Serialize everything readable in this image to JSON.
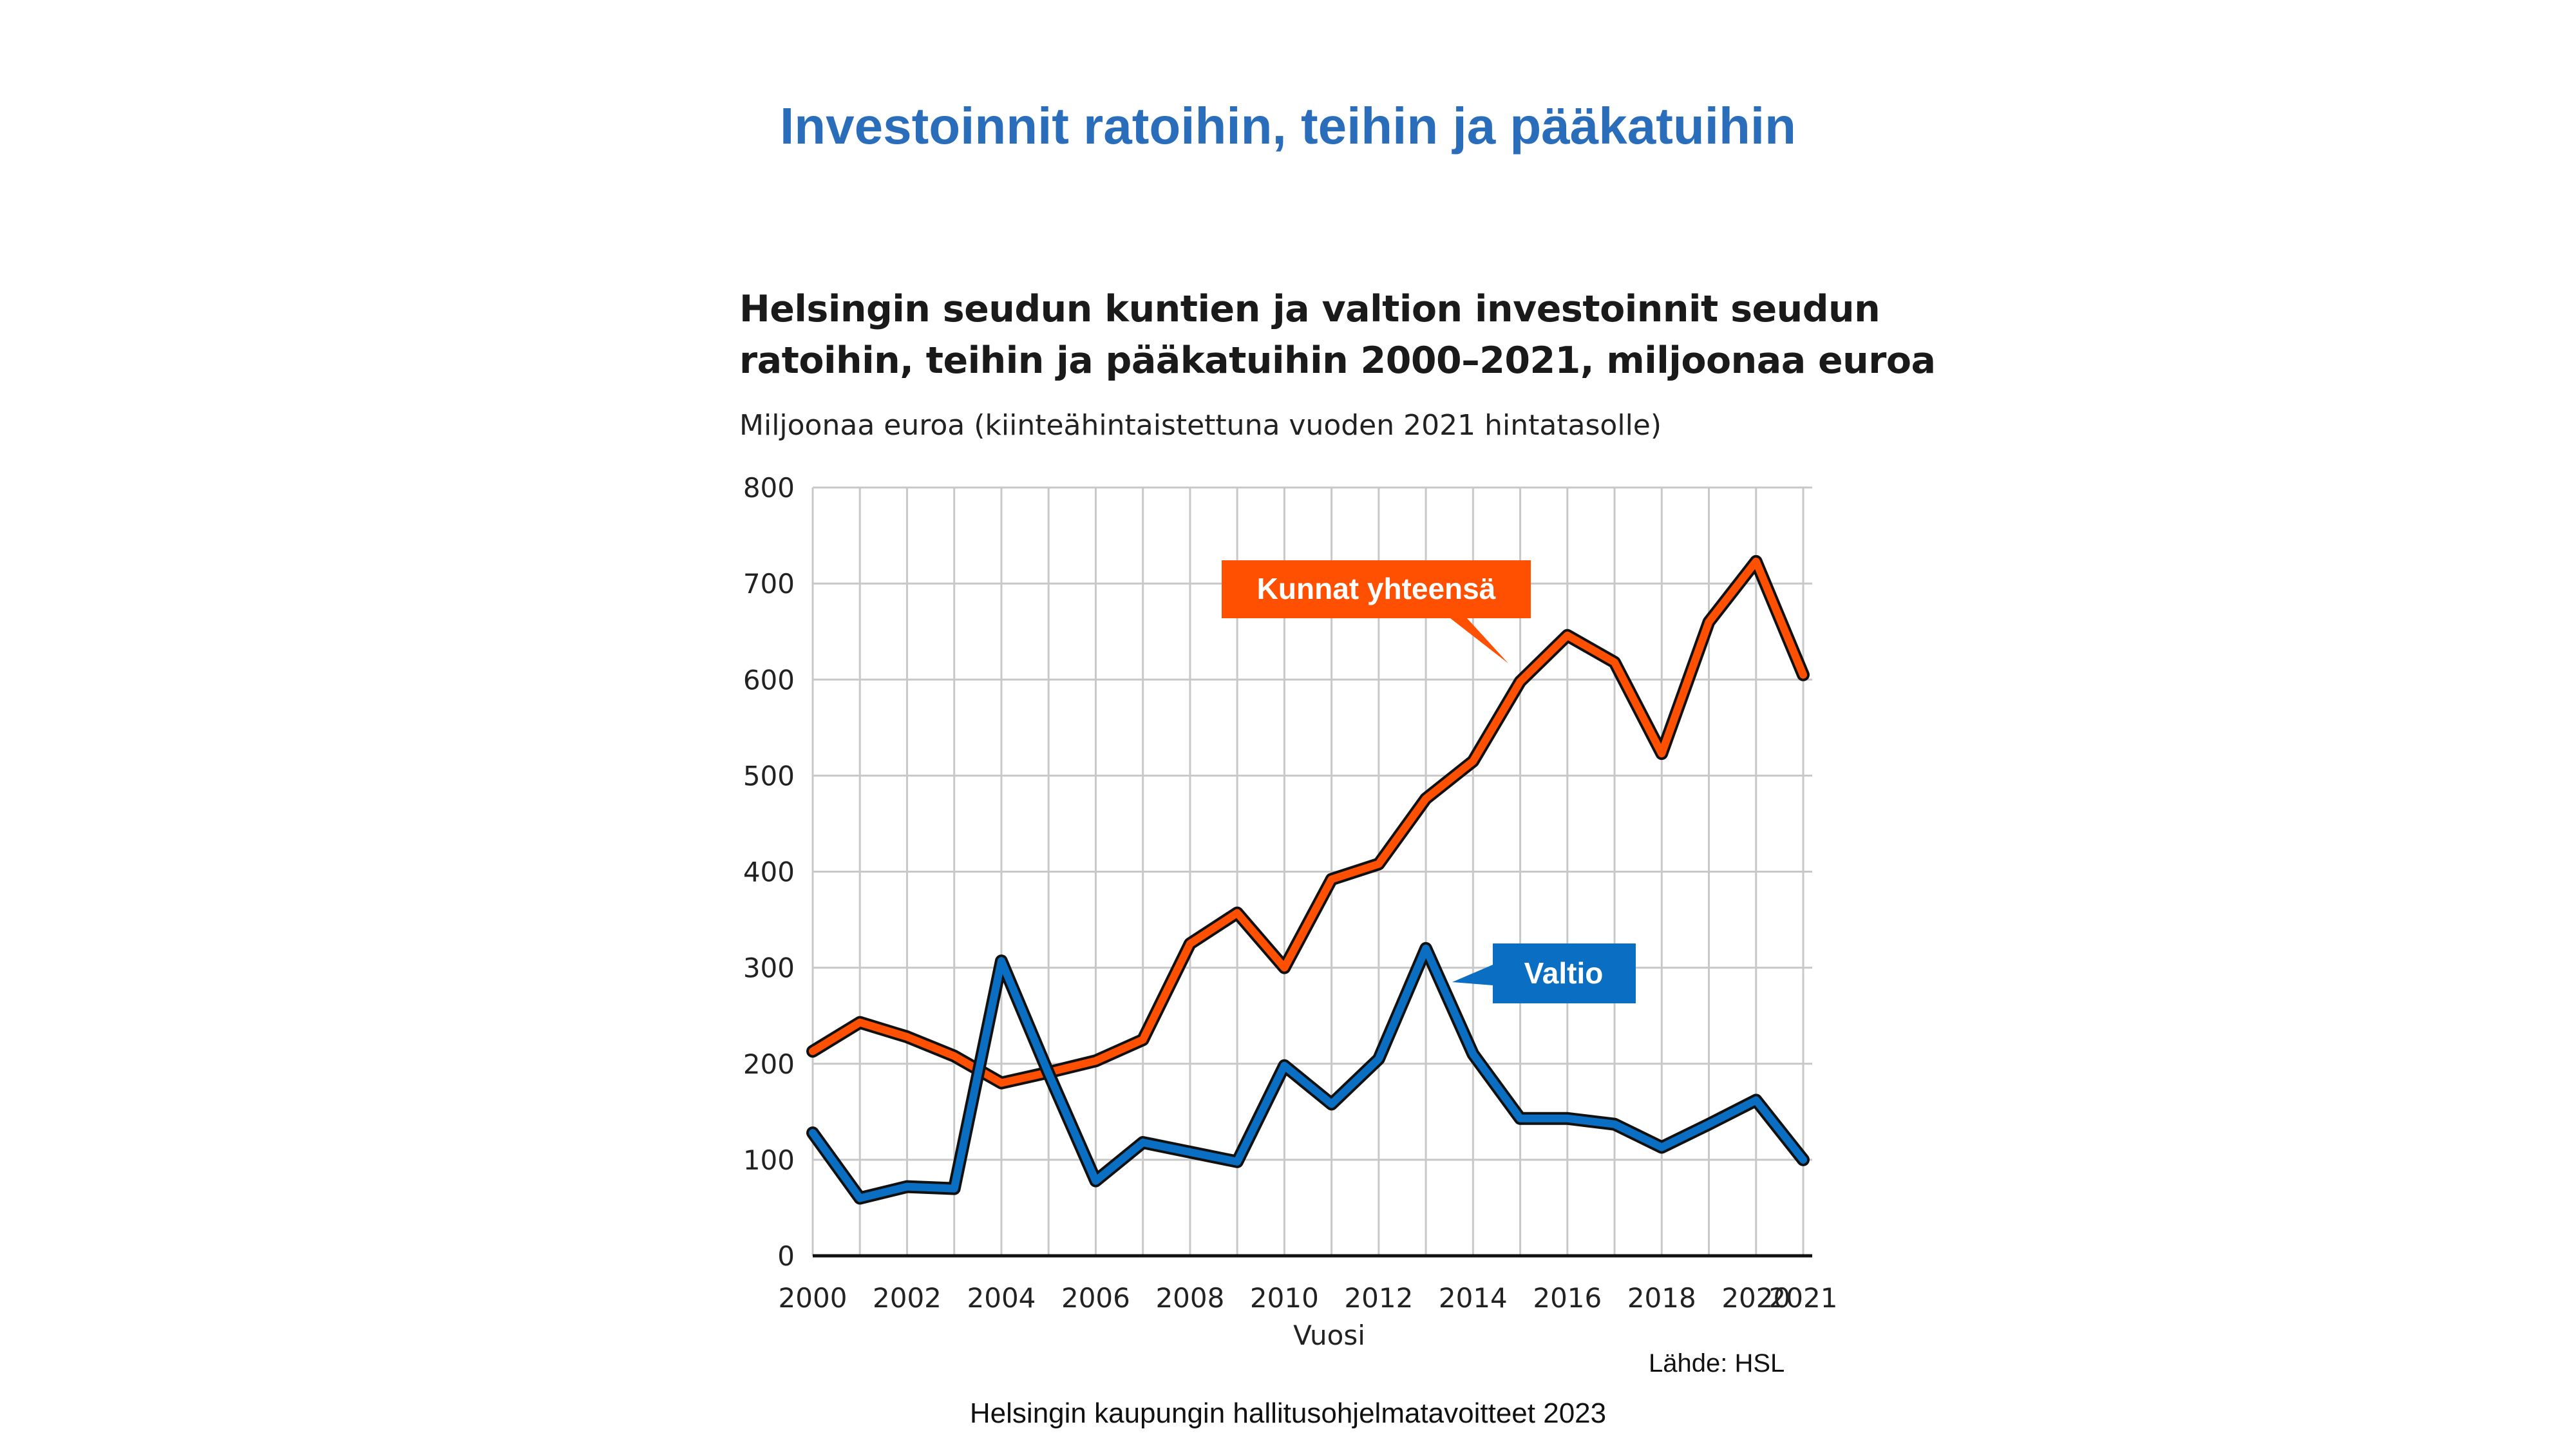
{
  "slide": {
    "title": "Investoinnit ratoihin, teihin ja pääkatuihin",
    "footer": "Helsingin kaupungin hallitusohjelmatavoitteet 2023"
  },
  "colors": {
    "title": "#2a6ebb",
    "kunnat": "#ff4f00",
    "valtio": "#0a6fc2",
    "grid": "#c8c8c8"
  },
  "chart_data": {
    "type": "line",
    "title": "Helsingin seudun kuntien ja valtion investoinnit seudun ratoihin, teihin ja pääkatuihin 2000–2021, miljoonaa euroa",
    "title_lines": [
      "Helsingin seudun kuntien ja valtion investoinnit seudun",
      "ratoihin, teihin ja pääkatuihin 2000–2021, miljoonaa euroa"
    ],
    "subtitle": "Miljoonaa euroa (kiinteähintaistettuna vuoden 2021 hintatasolle)",
    "xlabel": "Vuosi",
    "ylabel": "",
    "source": "Lähde: HSL",
    "x": [
      2000,
      2001,
      2002,
      2003,
      2004,
      2005,
      2006,
      2007,
      2008,
      2009,
      2010,
      2011,
      2012,
      2013,
      2014,
      2015,
      2016,
      2017,
      2018,
      2019,
      2020,
      2021
    ],
    "xticks": [
      2000,
      2002,
      2004,
      2006,
      2008,
      2010,
      2012,
      2014,
      2016,
      2018,
      2020,
      2021
    ],
    "ylim": [
      0,
      800
    ],
    "yticks": [
      0,
      100,
      200,
      300,
      400,
      500,
      600,
      700,
      800
    ],
    "grid": true,
    "series": [
      {
        "name": "Kunnat yhteensä",
        "color": "#ff4f00",
        "values": [
          213,
          243,
          228,
          208,
          180,
          191,
          203,
          225,
          325,
          357,
          300,
          392,
          408,
          476,
          515,
          598,
          646,
          618,
          523,
          660,
          723,
          605
        ]
      },
      {
        "name": "Valtio",
        "color": "#0a6fc2",
        "values": [
          128,
          60,
          72,
          70,
          307,
          190,
          78,
          118,
          108,
          98,
          198,
          158,
          205,
          320,
          210,
          143,
          143,
          137,
          113,
          137,
          162,
          100
        ]
      }
    ]
  }
}
